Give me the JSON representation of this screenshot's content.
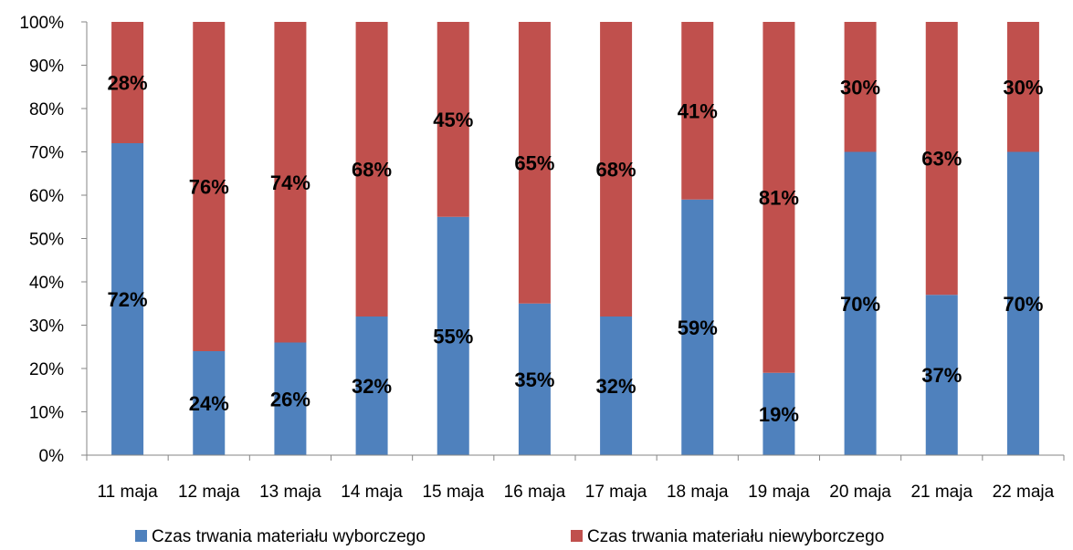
{
  "chart_data": {
    "type": "bar",
    "stacked": true,
    "percent_stacked": true,
    "categories": [
      "11 maja",
      "12 maja",
      "13 maja",
      "14 maja",
      "15 maja",
      "16 maja",
      "17 maja",
      "18 maja",
      "19 maja",
      "20 maja",
      "21 maja",
      "22 maja"
    ],
    "series": [
      {
        "name": "Czas trwania materiału wyborczego",
        "color": "#4f81bd",
        "values": [
          72,
          24,
          26,
          32,
          55,
          35,
          32,
          59,
          19,
          70,
          37,
          70
        ],
        "labels": [
          "72%",
          "24%",
          "26%",
          "32%",
          "55%",
          "35%",
          "32%",
          "59%",
          "19%",
          "70%",
          "37%",
          "70%"
        ]
      },
      {
        "name": "Czas trwania materiału niewyborczego",
        "color": "#c0504d",
        "values": [
          28,
          76,
          74,
          68,
          45,
          65,
          68,
          41,
          81,
          30,
          63,
          30
        ],
        "labels": [
          "28%",
          "76%",
          "74%",
          "68%",
          "45%",
          "65%",
          "68%",
          "41%",
          "81%",
          "30%",
          "63%",
          "30%"
        ]
      }
    ],
    "y_ticks": [
      "0%",
      "10%",
      "20%",
      "30%",
      "40%",
      "50%",
      "60%",
      "70%",
      "80%",
      "90%",
      "100%"
    ],
    "ylim": [
      0,
      100
    ],
    "title": "",
    "xlabel": "",
    "ylabel": "",
    "grid": false,
    "legend_position": "bottom"
  }
}
